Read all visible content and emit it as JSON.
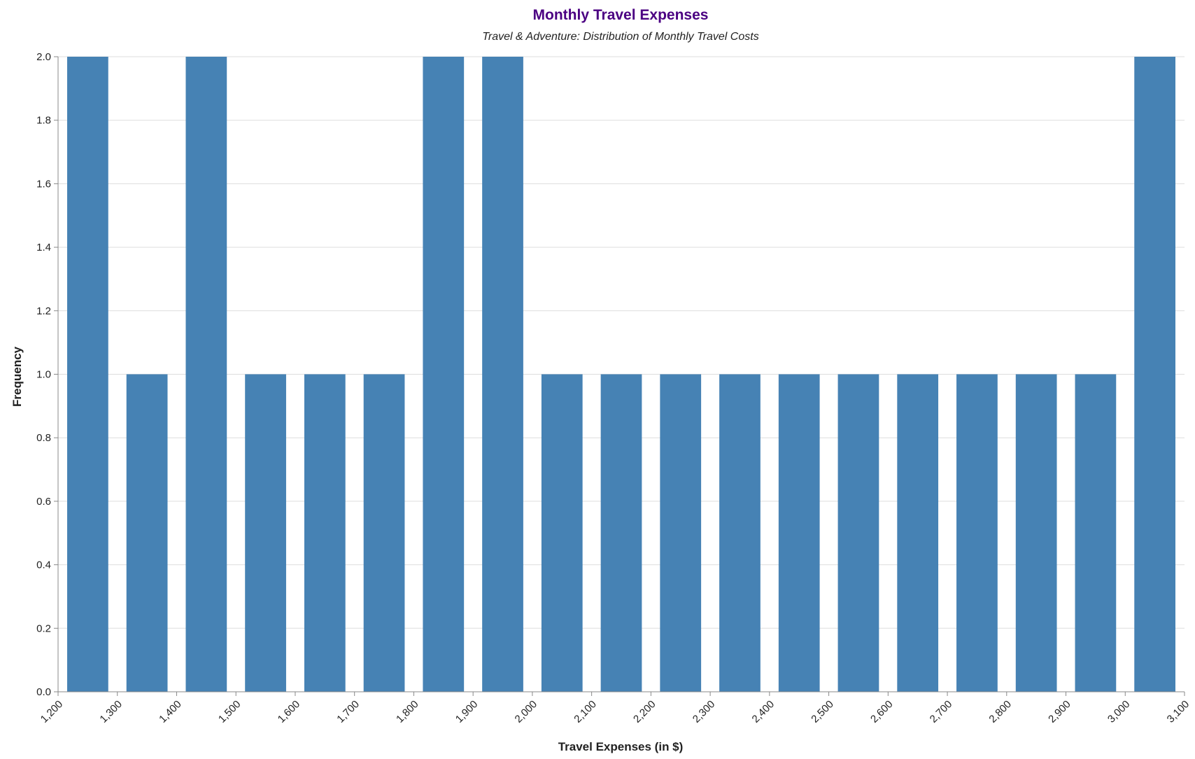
{
  "chart_data": {
    "type": "bar",
    "title": "Monthly Travel Expenses",
    "subtitle": "Travel & Adventure: Distribution of Monthly Travel Costs",
    "xlabel": "Travel Expenses (in $)",
    "ylabel": "Frequency",
    "xlim": [
      1200,
      3100
    ],
    "ylim": [
      0,
      2
    ],
    "bin_width": 100,
    "bins": [
      {
        "start": 1200,
        "end": 1300,
        "count": 2
      },
      {
        "start": 1300,
        "end": 1400,
        "count": 1
      },
      {
        "start": 1400,
        "end": 1500,
        "count": 2
      },
      {
        "start": 1500,
        "end": 1600,
        "count": 1
      },
      {
        "start": 1600,
        "end": 1700,
        "count": 1
      },
      {
        "start": 1700,
        "end": 1800,
        "count": 1
      },
      {
        "start": 1800,
        "end": 1900,
        "count": 2
      },
      {
        "start": 1900,
        "end": 2000,
        "count": 2
      },
      {
        "start": 2000,
        "end": 2100,
        "count": 1
      },
      {
        "start": 2100,
        "end": 2200,
        "count": 1
      },
      {
        "start": 2200,
        "end": 2300,
        "count": 1
      },
      {
        "start": 2300,
        "end": 2400,
        "count": 1
      },
      {
        "start": 2400,
        "end": 2500,
        "count": 1
      },
      {
        "start": 2500,
        "end": 2600,
        "count": 1
      },
      {
        "start": 2600,
        "end": 2700,
        "count": 1
      },
      {
        "start": 2700,
        "end": 2800,
        "count": 1
      },
      {
        "start": 2800,
        "end": 2900,
        "count": 1
      },
      {
        "start": 2900,
        "end": 3000,
        "count": 1
      },
      {
        "start": 3000,
        "end": 3100,
        "count": 2
      }
    ],
    "x_ticks": [
      "1,200",
      "1,300",
      "1,400",
      "1,500",
      "1,600",
      "1,700",
      "1,800",
      "1,900",
      "2,000",
      "2,100",
      "2,200",
      "2,300",
      "2,400",
      "2,500",
      "2,600",
      "2,700",
      "2,800",
      "2,900",
      "3,000",
      "3,100"
    ],
    "y_ticks": [
      "0.0",
      "0.2",
      "0.4",
      "0.6",
      "0.8",
      "1.0",
      "1.2",
      "1.4",
      "1.6",
      "1.8",
      "2.0"
    ],
    "grid": true,
    "legend": "none",
    "colors": {
      "bar": "#4682b4",
      "title": "#4b0082",
      "grid": "#dddddd",
      "axis": "#888888"
    }
  }
}
